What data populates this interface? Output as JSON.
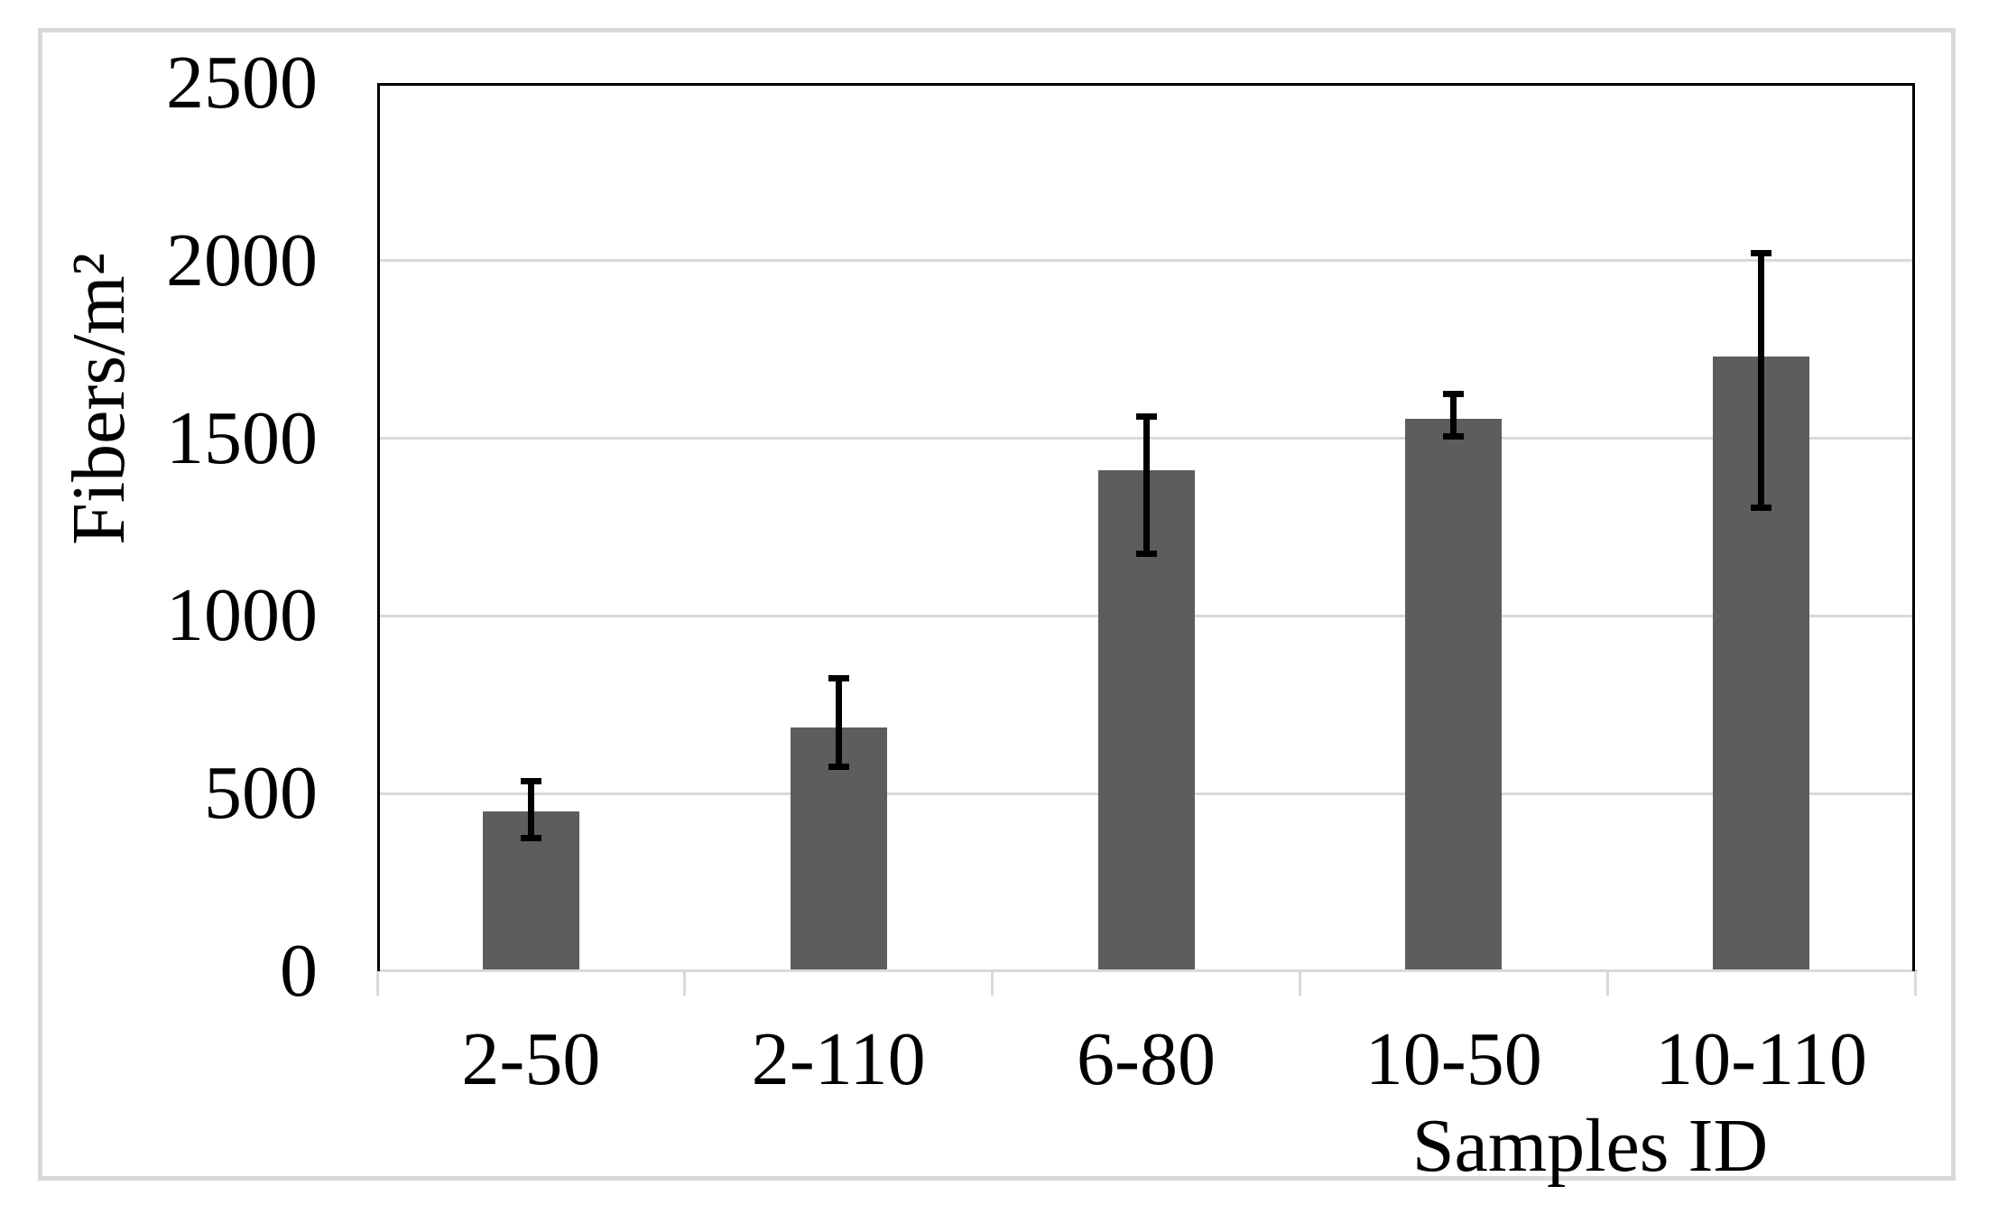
{
  "figure": {
    "background": "#ffffff",
    "outer_border_color": "#d9d9d9"
  },
  "chart_data": {
    "type": "bar",
    "title": "",
    "xlabel": "Samples ID",
    "ylabel": "Fibers/m²",
    "categories": [
      "2-50",
      "2-110",
      "6-80",
      "10-50",
      "10-110"
    ],
    "values": [
      450,
      685,
      1410,
      1555,
      1730
    ],
    "error_bars": [
      {
        "upper": 535,
        "lower": 375
      },
      {
        "upper": 825,
        "lower": 575
      },
      {
        "upper": 1560,
        "lower": 1175
      },
      {
        "upper": 1625,
        "lower": 1505
      },
      {
        "upper": 2020,
        "lower": 1305
      }
    ],
    "ylim": [
      0,
      2500
    ],
    "yticks": [
      0,
      500,
      1000,
      1500,
      2000,
      2500
    ],
    "y_tick_labels": [
      "0",
      "500",
      "1000",
      "1500",
      "2000",
      "2500"
    ],
    "grid": "horizontal",
    "legend_position": "none",
    "bar_color": "#5d5d5d",
    "error_color": "#000000",
    "gridline_color": "#d9d9d9",
    "axis_line_color": "#000000",
    "category_axis_color": "#d9d9d9",
    "text_color": "#000000"
  }
}
